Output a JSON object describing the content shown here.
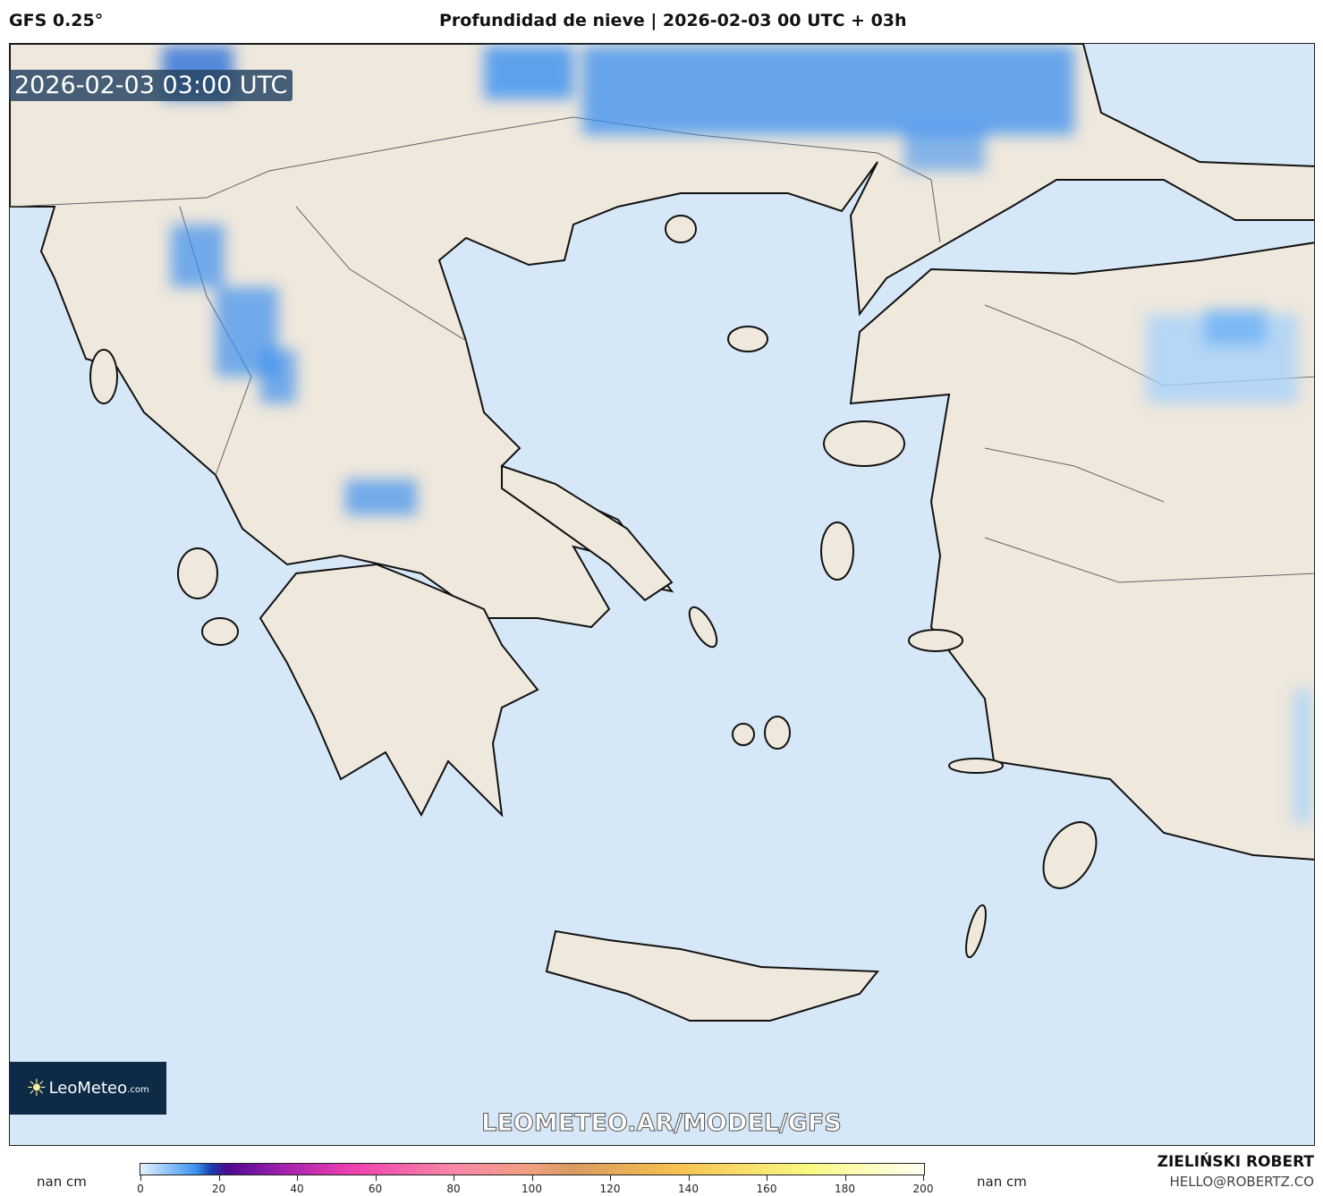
{
  "header": {
    "model": "GFS 0.25°",
    "title": "Profundidad de nieve | 2026-02-03 00 UTC + 03h"
  },
  "map": {
    "valid_time": "2026-02-03 03:00 UTC",
    "watermark": "LEOMETEO.AR/MODEL/GFS",
    "logo_text": "LeoMeteo",
    "logo_suffix": ".com",
    "sea_color": "#d6e7f7",
    "land_color": "#efe8dc"
  },
  "colorbar": {
    "left_unit": "nan cm",
    "right_unit": "nan cm",
    "ticks": [
      "0",
      "20",
      "40",
      "60",
      "80",
      "100",
      "120",
      "140",
      "160",
      "180",
      "200"
    ],
    "min": 0,
    "max": 200
  },
  "credits": {
    "author": "ZIELIŃSKI ROBERT",
    "email": "HELLO@ROBERTZ.CO"
  }
}
